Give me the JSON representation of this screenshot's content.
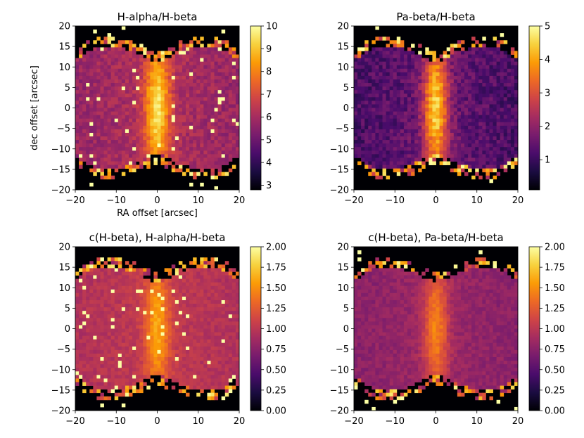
{
  "colormap": {
    "name": "inferno",
    "stops": [
      "#000004",
      "#1b0c41",
      "#4a0c6b",
      "#781c6d",
      "#a52c60",
      "#cf4446",
      "#ed6925",
      "#fb9b06",
      "#f7d13d",
      "#fcffa4"
    ]
  },
  "chart_data": [
    {
      "type": "heatmap",
      "title": "H-alpha/H-beta",
      "xlabel": "RA offset [arcsec]",
      "ylabel": "dec offset [arcsec]",
      "xlim": [
        -20,
        20
      ],
      "ylim": [
        -20,
        20
      ],
      "xticks": [
        -20,
        -10,
        0,
        10,
        20
      ],
      "yticks": [
        -20,
        -15,
        -10,
        -5,
        0,
        5,
        10,
        15,
        20
      ],
      "x_tick_labels": [
        "−20",
        "−10",
        "0",
        "10",
        "20"
      ],
      "y_tick_labels": [
        "−20",
        "−15",
        "−10",
        "−5",
        "0",
        "5",
        "10",
        "15",
        "20"
      ],
      "colorbar": {
        "min": 2.8,
        "max": 10,
        "ticks": [
          3,
          4,
          5,
          6,
          7,
          8,
          9,
          10
        ],
        "tick_labels": [
          "3",
          "4",
          "5",
          "6",
          "7",
          "8",
          "9",
          "10"
        ]
      },
      "typical_values": {
        "background": 5.2,
        "core_peak": 9.5
      }
    },
    {
      "type": "heatmap",
      "title": "Pa-beta/H-beta",
      "xlabel": "",
      "ylabel": "",
      "xlim": [
        -20,
        20
      ],
      "ylim": [
        -20,
        20
      ],
      "xticks": [
        -20,
        -10,
        0,
        10,
        20
      ],
      "yticks": [
        -20,
        -15,
        -10,
        -5,
        0,
        5,
        10,
        15,
        20
      ],
      "x_tick_labels": [
        "−20",
        "−10",
        "0",
        "10",
        "20"
      ],
      "y_tick_labels": [
        "−20",
        "−15",
        "−10",
        "−5",
        "0",
        "5",
        "10",
        "15",
        "20"
      ],
      "colorbar": {
        "min": 0.1,
        "max": 5,
        "ticks": [
          1,
          2,
          3,
          4,
          5
        ],
        "tick_labels": [
          "1",
          "2",
          "3",
          "4",
          "5"
        ]
      },
      "typical_values": {
        "background": 0.7,
        "core_peak": 4.5
      }
    },
    {
      "type": "heatmap",
      "title": "c(H-beta), H-alpha/H-beta",
      "xlabel": "",
      "ylabel": "",
      "xlim": [
        -20,
        20
      ],
      "ylim": [
        -20,
        20
      ],
      "xticks": [
        -20,
        -10,
        0,
        10,
        20
      ],
      "yticks": [
        -20,
        -15,
        -10,
        -5,
        0,
        5,
        10,
        15,
        20
      ],
      "x_tick_labels": [
        "−20",
        "−10",
        "0",
        "10",
        "20"
      ],
      "y_tick_labels": [
        "−20",
        "−15",
        "−10",
        "−5",
        "0",
        "5",
        "10",
        "15",
        "20"
      ],
      "colorbar": {
        "min": 0,
        "max": 2,
        "ticks": [
          0,
          0.25,
          0.5,
          0.75,
          1,
          1.25,
          1.5,
          1.75,
          2
        ],
        "tick_labels": [
          "0.00",
          "0.25",
          "0.50",
          "0.75",
          "1.00",
          "1.25",
          "1.50",
          "1.75",
          "2.00"
        ]
      },
      "typical_values": {
        "background": 0.85,
        "core_peak": 1.6
      }
    },
    {
      "type": "heatmap",
      "title": "c(H-beta), Pa-beta/H-beta",
      "xlabel": "",
      "ylabel": "",
      "xlim": [
        -20,
        20
      ],
      "ylim": [
        -20,
        20
      ],
      "xticks": [
        -20,
        -10,
        0,
        10,
        20
      ],
      "yticks": [
        -20,
        -15,
        -10,
        -5,
        0,
        5,
        10,
        15,
        20
      ],
      "x_tick_labels": [
        "−20",
        "−10",
        "0",
        "10",
        "20"
      ],
      "y_tick_labels": [
        "−20",
        "−15",
        "−10",
        "−5",
        "0",
        "5",
        "10",
        "15",
        "20"
      ],
      "colorbar": {
        "min": 0,
        "max": 2,
        "ticks": [
          0,
          0.25,
          0.5,
          0.75,
          1,
          1.25,
          1.5,
          1.75,
          2
        ],
        "tick_labels": [
          "0.00",
          "0.25",
          "0.50",
          "0.75",
          "1.00",
          "1.25",
          "1.50",
          "1.75",
          "2.00"
        ]
      },
      "typical_values": {
        "background": 0.65,
        "core_peak": 1.45
      }
    }
  ]
}
